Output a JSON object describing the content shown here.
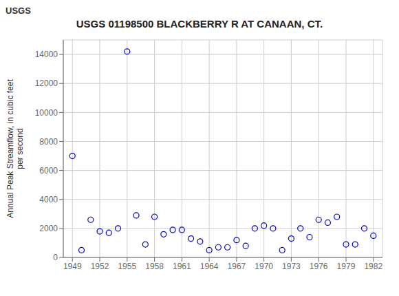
{
  "chart_data": {
    "type": "scatter",
    "title": "USGS 01198500 BLACKBERRY R AT CANAAN, CT.",
    "annotations": [
      "USGS"
    ],
    "ylabel": "Annual Peak Streamflow, in cubic feet\nper second",
    "x": [
      1949,
      1950,
      1951,
      1952,
      1953,
      1954,
      1955,
      1956,
      1957,
      1958,
      1959,
      1960,
      1961,
      1962,
      1963,
      1964,
      1965,
      1966,
      1967,
      1968,
      1969,
      1970,
      1971,
      1972,
      1973,
      1974,
      1975,
      1976,
      1977,
      1978,
      1979,
      1980,
      1981,
      1982
    ],
    "values": [
      7000,
      500,
      2600,
      1800,
      1700,
      2000,
      14200,
      2900,
      900,
      2800,
      1600,
      1900,
      1900,
      1300,
      1100,
      500,
      700,
      700,
      1200,
      800,
      2000,
      2200,
      2000,
      500,
      1300,
      2000,
      1400,
      2600,
      2400,
      2800,
      900,
      900,
      2000,
      1500
    ],
    "color": "#0000cc",
    "marker": "circle",
    "xlim": [
      1948,
      1983
    ],
    "ylim": [
      0,
      15000
    ],
    "xticks": [
      1949,
      1952,
      1955,
      1958,
      1961,
      1964,
      1967,
      1970,
      1973,
      1976,
      1979,
      1982
    ],
    "yticks": [
      0,
      2000,
      4000,
      6000,
      8000,
      10000,
      12000,
      14000
    ],
    "grid": true
  }
}
